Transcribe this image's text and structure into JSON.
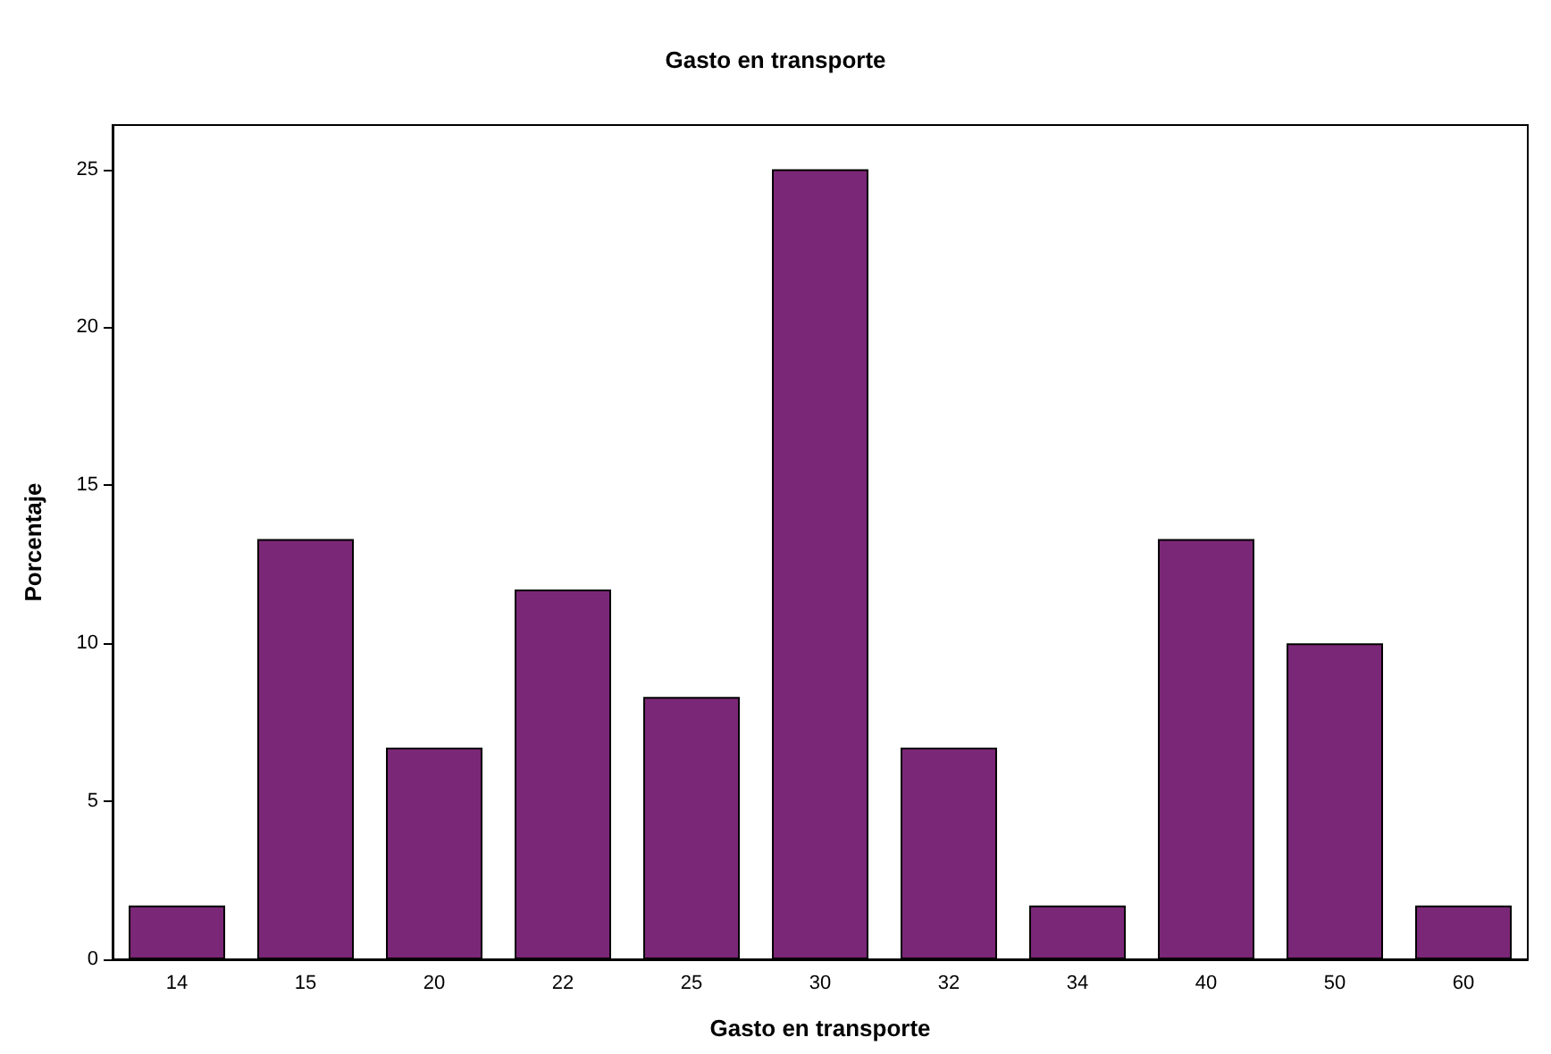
{
  "chart_data": {
    "type": "bar",
    "title": "Gasto en transporte",
    "xlabel": "Gasto en transporte",
    "ylabel": "Porcentaje",
    "categories": [
      "14",
      "15",
      "20",
      "22",
      "25",
      "30",
      "32",
      "34",
      "40",
      "50",
      "60"
    ],
    "values": [
      1.7,
      13.3,
      6.7,
      11.7,
      8.3,
      25,
      6.7,
      1.7,
      13.3,
      10,
      1.7
    ],
    "color": "#7b2777",
    "ylim": [
      0,
      26.4
    ],
    "yticks": [
      0,
      5,
      10,
      15,
      20,
      25
    ],
    "grid": false
  }
}
